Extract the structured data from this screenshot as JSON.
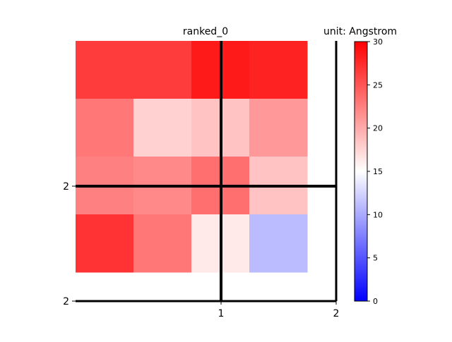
{
  "chart_data": {
    "type": "heatmap",
    "title": "ranked_0",
    "unit_label": "unit: Angstrom",
    "colormap": "bwr",
    "value_range": [
      0,
      30
    ],
    "colorbar_ticks": [
      "0",
      "5",
      "10",
      "15",
      "20",
      "25",
      "30"
    ],
    "rows": 4,
    "cols": 4,
    "values": [
      [
        26.5,
        26.5,
        28.5,
        28
      ],
      [
        23,
        17.7,
        18.5,
        21
      ],
      [
        22.5,
        22,
        23.5,
        18.5
      ],
      [
        27,
        23,
        16.3,
        11
      ]
    ],
    "x_tick_labels": [
      "1",
      "2"
    ],
    "y_tick_labels": [
      "2",
      "2"
    ]
  }
}
